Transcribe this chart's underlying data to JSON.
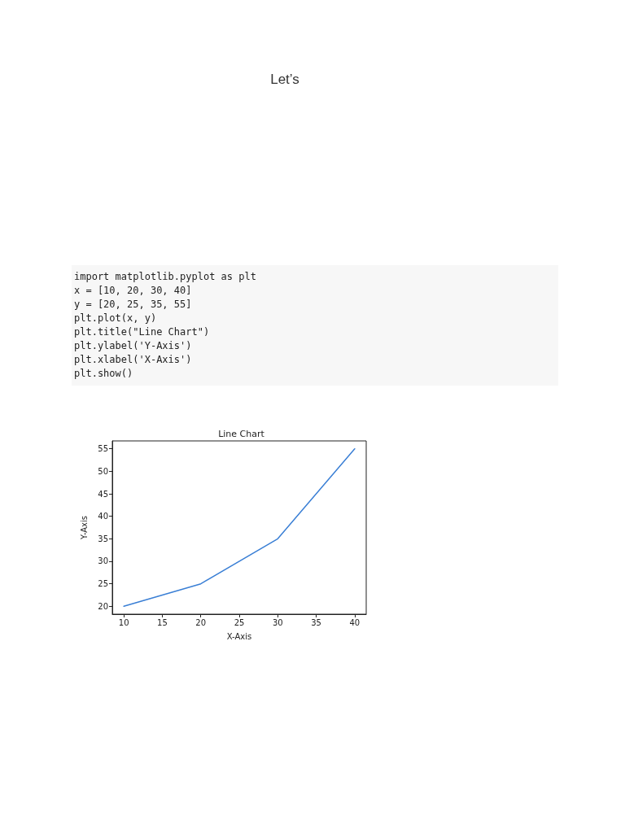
{
  "chart_data": {
    "type": "line",
    "title": "Line Chart",
    "xlabel": "X-Axis",
    "ylabel": "Y-Axis",
    "annotations": [
      "Let’s",
      "import matplotlib.pyplot as plt",
      "x = [10, 20, 30, 40]",
      "y = [20, 25, 35, 55]",
      "plt.plot(x, y)",
      "plt.title(\"Line Chart\")",
      "plt.ylabel('Y-Axis')",
      "plt.xlabel('X-Axis')",
      "plt.show()"
    ],
    "x": [
      10,
      20,
      30,
      40
    ],
    "series": [
      {
        "color": "#3a7fd5",
        "values": [
          20,
          25,
          35,
          55
        ]
      }
    ],
    "xlim": [
      8.5,
      41.5
    ],
    "xticks": [
      10,
      15,
      20,
      25,
      30,
      35,
      40
    ],
    "ylim": [
      18.25,
      56.75
    ],
    "yticks": [
      20,
      25,
      30,
      35,
      40,
      45,
      50,
      55
    ],
    "grid": false,
    "marker": "none",
    "line_style": "solid"
  }
}
